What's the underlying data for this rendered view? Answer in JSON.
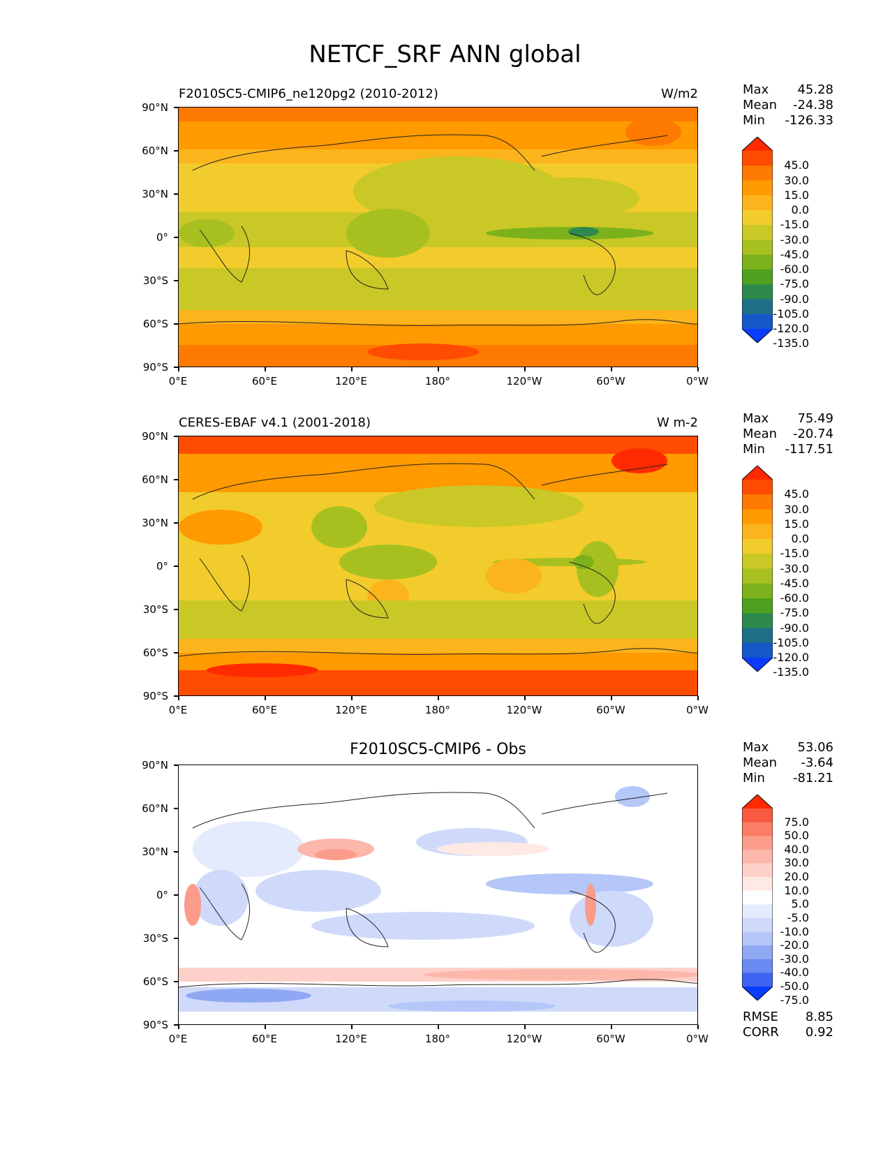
{
  "title": "NETCF_SRF ANN global",
  "lat_ticks": [
    "90°N",
    "60°N",
    "30°N",
    "0°",
    "30°S",
    "60°S",
    "90°S"
  ],
  "lon_ticks": [
    "0°E",
    "60°E",
    "120°E",
    "180°",
    "120°W",
    "60°W",
    "0°W"
  ],
  "panels": [
    {
      "title_left": "F2010SC5-CMIP6_ne120pg2 (2010-2012)",
      "title_right": "W/m2",
      "stats": [
        {
          "label": "Max",
          "value": "45.28"
        },
        {
          "label": "Mean",
          "value": "-24.38"
        },
        {
          "label": "Min",
          "value": "-126.33"
        }
      ],
      "colorbar": {
        "levels": [
          "45.0",
          "30.0",
          "15.0",
          "0.0",
          "-15.0",
          "-30.0",
          "-45.0",
          "-60.0",
          "-75.0",
          "-90.0",
          "-105.0",
          "-120.0",
          "-135.0"
        ],
        "colors": [
          "#ff2a00",
          "#ff4c00",
          "#ff7a00",
          "#ff9a00",
          "#fbb41c",
          "#f2cc2c",
          "#c9c826",
          "#a7c020",
          "#7bb21c",
          "#4ea11e",
          "#2e8a4c",
          "#1f6f88",
          "#1458c9",
          "#0a3cff"
        ]
      }
    },
    {
      "title_left": "CERES-EBAF v4.1 (2001-2018)",
      "title_right": "W m-2",
      "stats": [
        {
          "label": "Max",
          "value": "75.49"
        },
        {
          "label": "Mean",
          "value": "-20.74"
        },
        {
          "label": "Min",
          "value": "-117.51"
        }
      ],
      "colorbar": {
        "levels": [
          "45.0",
          "30.0",
          "15.0",
          "0.0",
          "-15.0",
          "-30.0",
          "-45.0",
          "-60.0",
          "-75.0",
          "-90.0",
          "-105.0",
          "-120.0",
          "-135.0"
        ],
        "colors": [
          "#ff2a00",
          "#ff4c00",
          "#ff7a00",
          "#ff9a00",
          "#fbb41c",
          "#f2cc2c",
          "#c9c826",
          "#a7c020",
          "#7bb21c",
          "#4ea11e",
          "#2e8a4c",
          "#1f6f88",
          "#1458c9",
          "#0a3cff"
        ]
      }
    },
    {
      "title_center": "F2010SC5-CMIP6 - Obs",
      "stats": [
        {
          "label": "Max",
          "value": "53.06"
        },
        {
          "label": "Mean",
          "value": "-3.64"
        },
        {
          "label": "Min",
          "value": "-81.21"
        }
      ],
      "colorbar": {
        "levels": [
          "75.0",
          "50.0",
          "40.0",
          "30.0",
          "20.0",
          "10.0",
          "5.0",
          "-5.0",
          "-10.0",
          "-20.0",
          "-30.0",
          "-40.0",
          "-50.0",
          "-75.0"
        ],
        "colors": [
          "#ff2a00",
          "#f75a40",
          "#fa7d66",
          "#fb9c8a",
          "#fcb7ab",
          "#fdd1c9",
          "#fee9e5",
          "#ffffff",
          "#e4ebfd",
          "#cfdafb",
          "#b5c7f8",
          "#8fa8f4",
          "#6a8af1",
          "#3f63f0",
          "#0a3cff"
        ]
      },
      "metrics": [
        {
          "label": "RMSE",
          "value": "8.85"
        },
        {
          "label": "CORR",
          "value": "0.92"
        }
      ]
    }
  ]
}
